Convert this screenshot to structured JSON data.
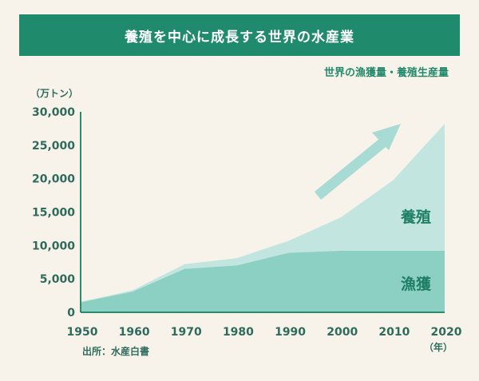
{
  "title": "養殖を中心に成長する世界の水産業",
  "subtitle": "世界の漁獲量・養殖生産量",
  "y_unit": "（万トン）",
  "x_unit": "（年）",
  "source": "出所：水産白書",
  "colors": {
    "banner": "#1f8a6c",
    "capture": "#8ccfc3",
    "aquaculture": "#c2e5e0",
    "axis": "#2b8b6d",
    "label": "#2f6b5d",
    "arrow": "#a7dbd3"
  },
  "chart_data": {
    "type": "area",
    "stacked": true,
    "x": [
      1950,
      1955,
      1960,
      1970,
      1980,
      1990,
      2000,
      2010,
      2020
    ],
    "x_ticks": [
      1950,
      1960,
      1970,
      1980,
      1990,
      2000,
      2010,
      2020
    ],
    "y_ticks": [
      0,
      5000,
      10000,
      15000,
      20000,
      25000,
      30000
    ],
    "y_tick_labels": [
      "0",
      "5,000",
      "10,000",
      "15,000",
      "20,000",
      "25,000",
      "30,000"
    ],
    "ylim": [
      0,
      30000
    ],
    "xlim": [
      1950,
      2020
    ],
    "series": [
      {
        "name": "漁獲",
        "values": [
          1500,
          2300,
          3100,
          6500,
          7000,
          8900,
          9200,
          9200,
          9200
        ]
      },
      {
        "name": "養殖",
        "values": [
          100,
          100,
          200,
          700,
          1100,
          1800,
          5000,
          10500,
          19000
        ]
      }
    ],
    "trend_arrow": true,
    "legend": "inline-labels"
  }
}
